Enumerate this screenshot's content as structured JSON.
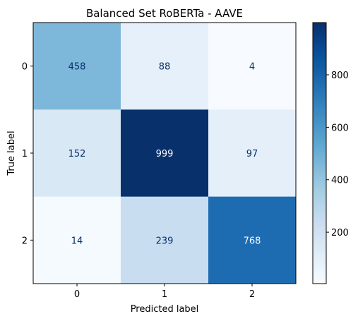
{
  "chart_data": {
    "type": "heatmap",
    "title": "Balanced Set RoBERTa - AAVE",
    "xlabel": "Predicted label",
    "ylabel": "True label",
    "x_categories": [
      "0",
      "1",
      "2"
    ],
    "y_categories": [
      "0",
      "1",
      "2"
    ],
    "values": [
      [
        458,
        88,
        4
      ],
      [
        152,
        999,
        97
      ],
      [
        14,
        239,
        768
      ]
    ],
    "colormap": "Blues",
    "vmin": 4,
    "vmax": 999,
    "colorbar_ticks": [
      200,
      400,
      600,
      800
    ],
    "grid": false
  }
}
